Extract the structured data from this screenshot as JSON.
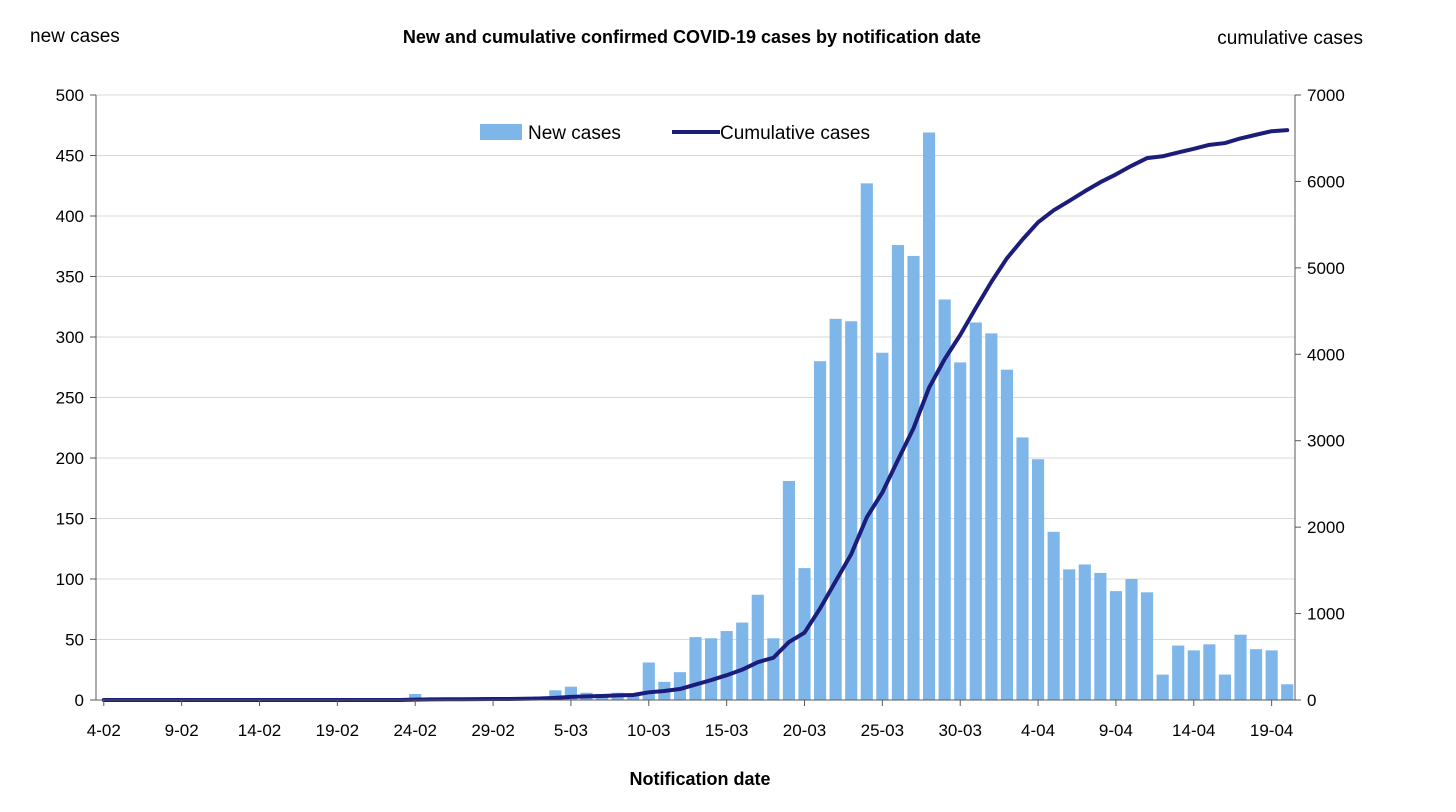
{
  "chart_data": {
    "type": "bar",
    "title": "New and cumulative confirmed COVID-19 cases by notification date",
    "xlabel": "Notification date",
    "ylabel_left": "new cases",
    "ylabel_right": "cumulative cases",
    "ylim_left": [
      0,
      500
    ],
    "ylim_right": [
      0,
      7000
    ],
    "yticks_left": [
      0,
      50,
      100,
      150,
      200,
      250,
      300,
      350,
      400,
      450,
      500
    ],
    "yticks_right": [
      0,
      1000,
      2000,
      3000,
      4000,
      5000,
      6000,
      7000
    ],
    "grid": true,
    "legend_position": "top-center",
    "categories": [
      "4-02",
      "5-02",
      "6-02",
      "7-02",
      "8-02",
      "9-02",
      "10-02",
      "11-02",
      "12-02",
      "13-02",
      "14-02",
      "15-02",
      "16-02",
      "17-02",
      "18-02",
      "19-02",
      "20-02",
      "21-02",
      "22-02",
      "23-02",
      "24-02",
      "25-02",
      "26-02",
      "27-02",
      "28-02",
      "29-02",
      "1-03",
      "2-03",
      "3-03",
      "4-03",
      "5-03",
      "6-03",
      "7-03",
      "8-03",
      "9-03",
      "10-03",
      "11-03",
      "12-03",
      "13-03",
      "14-03",
      "15-03",
      "16-03",
      "17-03",
      "18-03",
      "19-03",
      "20-03",
      "21-03",
      "22-03",
      "23-03",
      "24-03",
      "25-03",
      "26-03",
      "27-03",
      "28-03",
      "29-03",
      "30-03",
      "31-03",
      "1-04",
      "2-04",
      "3-04",
      "4-04",
      "5-04",
      "6-04",
      "7-04",
      "8-04",
      "9-04",
      "10-04",
      "11-04",
      "12-04",
      "13-04",
      "14-04",
      "15-04",
      "16-04",
      "17-04",
      "18-04",
      "19-04",
      "20-04"
    ],
    "x_tick_labels": [
      "4-02",
      "9-02",
      "14-02",
      "19-02",
      "24-02",
      "29-02",
      "5-03",
      "10-03",
      "15-03",
      "20-03",
      "25-03",
      "30-03",
      "4-04",
      "9-04",
      "14-04",
      "19-04"
    ],
    "series": [
      {
        "name": "New cases",
        "type": "bar",
        "color": "#7EB6EA",
        "axis": "left",
        "values": [
          0,
          0,
          0,
          0,
          0,
          0,
          0,
          0,
          0,
          0,
          0,
          0,
          0,
          0,
          0,
          0,
          0,
          0,
          0,
          0,
          5,
          2,
          1,
          1,
          1,
          1,
          1,
          2,
          3,
          8,
          11,
          6,
          5,
          6,
          5,
          31,
          15,
          23,
          52,
          51,
          57,
          64,
          87,
          51,
          181,
          109,
          280,
          315,
          313,
          427,
          287,
          376,
          367,
          469,
          331,
          279,
          312,
          303,
          273,
          217,
          199,
          139,
          108,
          112,
          105,
          90,
          100,
          89,
          21,
          45,
          41,
          46,
          21,
          54,
          42,
          41,
          13
        ]
      },
      {
        "name": "Cumulative cases",
        "type": "line",
        "color": "#1C1C7A",
        "axis": "right",
        "values": [
          0,
          0,
          0,
          0,
          0,
          0,
          0,
          0,
          0,
          0,
          0,
          0,
          0,
          0,
          0,
          0,
          0,
          0,
          0,
          0,
          5,
          7,
          8,
          9,
          10,
          11,
          12,
          14,
          17,
          25,
          36,
          42,
          47,
          53,
          58,
          89,
          104,
          127,
          179,
          230,
          287,
          351,
          438,
          489,
          670,
          779,
          1059,
          1374,
          1687,
          2114,
          2401,
          2777,
          3144,
          3613,
          3944,
          4223,
          4535,
          4838,
          5111,
          5328,
          5527,
          5666,
          5774,
          5886,
          5991,
          6081,
          6181,
          6270,
          6291,
          6336,
          6377,
          6423,
          6444,
          6498,
          6540,
          6581,
          6594
        ]
      }
    ]
  }
}
